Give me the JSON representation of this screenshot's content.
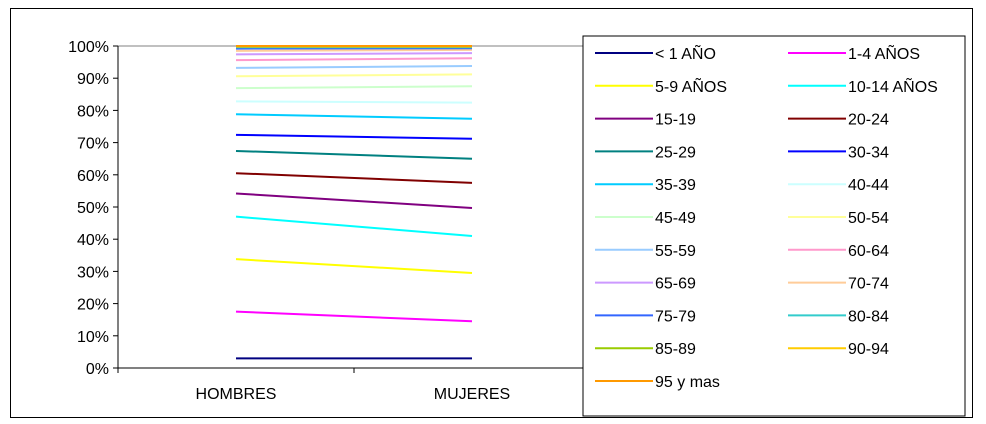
{
  "chart_data": {
    "type": "line",
    "categories": [
      "HOMBRES",
      "MUJERES"
    ],
    "y_tick_labels": [
      "0%",
      "10%",
      "20%",
      "30%",
      "40%",
      "50%",
      "60%",
      "70%",
      "80%",
      "90%",
      "100%"
    ],
    "ylim": [
      0,
      100
    ],
    "stacked_percent": true,
    "legend_position": "right",
    "series": [
      {
        "name": "< 1 AÑO",
        "color": "#000080",
        "values": [
          3.0,
          3.0
        ]
      },
      {
        "name": "1-4 AÑOS",
        "color": "#FF00FF",
        "values": [
          17.5,
          14.5
        ]
      },
      {
        "name": "5-9 AÑOS",
        "color": "#FFFF00",
        "values": [
          33.8,
          29.5
        ]
      },
      {
        "name": "10-14 AÑOS",
        "color": "#00FFFF",
        "values": [
          47.0,
          41.0
        ]
      },
      {
        "name": "15-19",
        "color": "#800080",
        "values": [
          54.2,
          49.7
        ]
      },
      {
        "name": "20-24",
        "color": "#800000",
        "values": [
          60.5,
          57.5
        ]
      },
      {
        "name": "25-29",
        "color": "#008080",
        "values": [
          67.4,
          65.0
        ]
      },
      {
        "name": "30-34",
        "color": "#0000FF",
        "values": [
          72.4,
          71.2
        ]
      },
      {
        "name": "35-39",
        "color": "#00CCFF",
        "values": [
          78.8,
          77.4
        ]
      },
      {
        "name": "40-44",
        "color": "#CCFFFF",
        "values": [
          82.8,
          82.4
        ]
      },
      {
        "name": "45-49",
        "color": "#CCFFCC",
        "values": [
          86.9,
          87.5
        ]
      },
      {
        "name": "50-54",
        "color": "#FFFF99",
        "values": [
          90.6,
          91.2
        ]
      },
      {
        "name": "55-59",
        "color": "#99CCFF",
        "values": [
          93.2,
          93.8
        ]
      },
      {
        "name": "60-64",
        "color": "#FF99CC",
        "values": [
          95.6,
          96.2
        ]
      },
      {
        "name": "65-69",
        "color": "#CC99FF",
        "values": [
          97.4,
          97.8
        ]
      },
      {
        "name": "70-74",
        "color": "#FFCC99",
        "values": [
          98.5,
          98.8
        ]
      },
      {
        "name": "75-79",
        "color": "#3366FF",
        "values": [
          99.2,
          99.3
        ]
      },
      {
        "name": "80-84",
        "color": "#33CCCC",
        "values": [
          99.6,
          99.6
        ]
      },
      {
        "name": "85-89",
        "color": "#99CC00",
        "values": [
          99.8,
          99.8
        ]
      },
      {
        "name": "90-94",
        "color": "#FFCC00",
        "values": [
          99.9,
          99.9
        ]
      },
      {
        "name": "95 y mas",
        "color": "#FF9900",
        "values": [
          100,
          100
        ]
      }
    ]
  }
}
